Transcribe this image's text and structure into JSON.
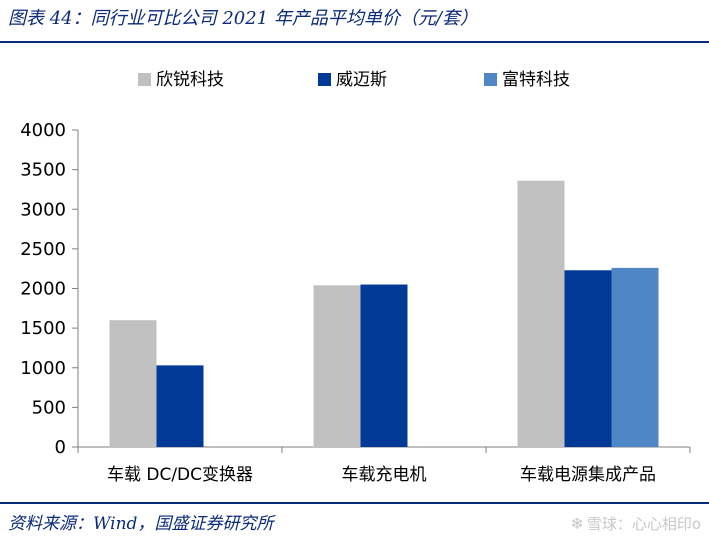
{
  "figure_title": "图表 44：同行业可比公司 2021 年产品平均单价（元/套）",
  "source_note": "资料来源：Wind，国盛证券研究所",
  "watermark": {
    "icon": "snowball-icon",
    "text": "雪球：心心相印o"
  },
  "colors": {
    "title_blue": "#0a2a7a",
    "series": [
      "#c0c0c0",
      "#003a96",
      "#4f86c6"
    ]
  },
  "chart_data": {
    "type": "bar",
    "title": "",
    "xlabel": "",
    "ylabel": "",
    "ylim": [
      0,
      4000
    ],
    "yticks": [
      0,
      500,
      1000,
      1500,
      2000,
      2500,
      3000,
      3500,
      4000
    ],
    "grid": false,
    "legend": "top-center",
    "categories": [
      "车载 DC/DC变换器",
      "车载充电机",
      "车载电源集成产品"
    ],
    "series": [
      {
        "name": "欣锐科技",
        "values": [
          1600,
          2040,
          3360
        ]
      },
      {
        "name": "威迈斯",
        "values": [
          1030,
          2050,
          2230
        ]
      },
      {
        "name": "富特科技",
        "values": [
          null,
          null,
          2260
        ]
      }
    ]
  }
}
